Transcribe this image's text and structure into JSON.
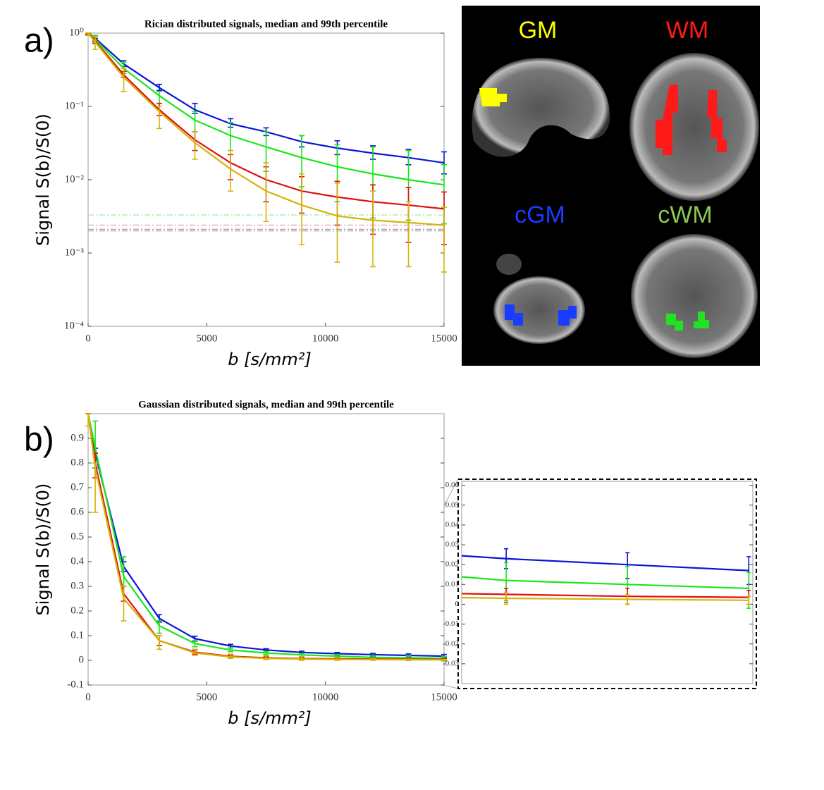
{
  "chart_data": [
    {
      "type": "line",
      "title": "Rician distributed signals, median and 99th percentile",
      "panel": "a)",
      "ylabel": "Signal S(b)/S(0)",
      "xlabel": "b [s/mm²]",
      "log_y": true,
      "x": [
        0,
        300,
        1500,
        3000,
        4500,
        6000,
        7500,
        9000,
        10500,
        12000,
        13500,
        15000
      ],
      "xlim": [
        0,
        15000
      ],
      "xticks": [
        0,
        5000,
        10000,
        15000
      ],
      "ylim": [
        0.0001,
        1
      ],
      "yticks": [
        {
          "value": 0.0001,
          "label": "10⁻⁴"
        },
        {
          "value": 0.001,
          "label": "10⁻³"
        },
        {
          "value": 0.01,
          "label": "10⁻²"
        },
        {
          "value": 0.1,
          "label": "10⁻¹"
        },
        {
          "value": 1,
          "label": "10⁰"
        }
      ],
      "series": [
        {
          "color": "#0a14d8",
          "values": [
            1,
            0.85,
            0.38,
            0.18,
            0.09,
            0.058,
            0.045,
            0.033,
            0.027,
            0.023,
            0.02,
            0.017
          ],
          "lower": [
            0.98,
            0.78,
            0.35,
            0.165,
            0.08,
            0.052,
            0.04,
            0.028,
            0.022,
            0.019,
            0.016,
            0.012
          ],
          "upper": [
            1,
            0.93,
            0.42,
            0.2,
            0.11,
            0.068,
            0.051,
            0.04,
            0.034,
            0.029,
            0.026,
            0.024
          ]
        },
        {
          "color": "#19e619",
          "values": [
            1,
            0.82,
            0.33,
            0.14,
            0.065,
            0.04,
            0.028,
            0.02,
            0.015,
            0.012,
            0.01,
            0.0085
          ],
          "lower": [
            0.97,
            0.75,
            0.28,
            0.11,
            0.045,
            0.025,
            0.013,
            0.008,
            0.005,
            0.003,
            0.0028,
            0.0025
          ],
          "upper": [
            1,
            0.93,
            0.4,
            0.16,
            0.085,
            0.06,
            0.045,
            0.04,
            0.03,
            0.028,
            0.025,
            0.016
          ]
        },
        {
          "color": "#e01010",
          "values": [
            1,
            0.78,
            0.27,
            0.09,
            0.035,
            0.017,
            0.01,
            0.007,
            0.0058,
            0.005,
            0.0045,
            0.004
          ],
          "lower": [
            0.96,
            0.72,
            0.25,
            0.075,
            0.025,
            0.01,
            0.005,
            0.0035,
            0.0024,
            0.0018,
            0.0014,
            0.0013
          ],
          "upper": [
            1,
            0.85,
            0.3,
            0.11,
            0.045,
            0.022,
            0.015,
            0.011,
            0.0095,
            0.0085,
            0.0078,
            0.0068
          ]
        },
        {
          "color": "#d4b40a",
          "values": [
            1,
            0.75,
            0.25,
            0.085,
            0.032,
            0.014,
            0.007,
            0.0045,
            0.0032,
            0.0028,
            0.0026,
            0.0024
          ],
          "lower": [
            0.93,
            0.6,
            0.16,
            0.05,
            0.019,
            0.007,
            0.0027,
            0.0013,
            0.00075,
            0.00065,
            0.00065,
            0.00055
          ],
          "upper": [
            1,
            0.9,
            0.33,
            0.1,
            0.045,
            0.025,
            0.017,
            0.012,
            0.009,
            0.007,
            0.005,
            0.0042
          ]
        }
      ],
      "hlines": [
        {
          "color": "#a8eea8",
          "value": 0.0033
        },
        {
          "color": "#f0a8a8",
          "value": 0.0024
        },
        {
          "color": "#a0a0d8",
          "value": 0.0021
        },
        {
          "color": "#c8b890",
          "value": 0.002
        }
      ],
      "image_labels": [
        {
          "text": "GM",
          "color": "#ffff00"
        },
        {
          "text": "WM",
          "color": "#ff1a1a"
        },
        {
          "text": "cGM",
          "color": "#1a3cff"
        },
        {
          "text": "cWM",
          "color": "#8cc850"
        }
      ]
    },
    {
      "type": "line",
      "title": "Gaussian distributed signals, median and 99th percentile",
      "panel": "b)",
      "ylabel": "Signal S(b)/S(0)",
      "xlabel": "b [s/mm²]",
      "log_y": false,
      "x": [
        0,
        300,
        1500,
        3000,
        4500,
        6000,
        7500,
        9000,
        10500,
        12000,
        13500,
        15000
      ],
      "xlim": [
        0,
        15000
      ],
      "xticks": [
        0,
        5000,
        10000,
        15000
      ],
      "ylim": [
        -0.1,
        1
      ],
      "yticks": [
        -0.1,
        0,
        0.1,
        0.2,
        0.3,
        0.4,
        0.5,
        0.6,
        0.7,
        0.8,
        0.9
      ],
      "series": [
        {
          "color": "#0a14d8",
          "values": [
            1,
            0.84,
            0.38,
            0.17,
            0.088,
            0.058,
            0.042,
            0.032,
            0.027,
            0.023,
            0.02,
            0.017
          ],
          "lower": [
            1,
            0.78,
            0.36,
            0.155,
            0.078,
            0.05,
            0.037,
            0.028,
            0.022,
            0.018,
            0.013,
            0.01
          ],
          "upper": [
            1,
            0.86,
            0.4,
            0.185,
            0.098,
            0.065,
            0.047,
            0.037,
            0.032,
            0.028,
            0.026,
            0.024
          ]
        },
        {
          "color": "#19e619",
          "values": [
            1,
            0.86,
            0.34,
            0.14,
            0.068,
            0.042,
            0.03,
            0.022,
            0.017,
            0.012,
            0.01,
            0.008
          ],
          "lower": [
            1,
            0.78,
            0.3,
            0.11,
            0.055,
            0.035,
            0.023,
            0.015,
            0.01,
            0.002,
            0,
            -0.002
          ],
          "upper": [
            1,
            0.97,
            0.42,
            0.16,
            0.08,
            0.05,
            0.036,
            0.028,
            0.024,
            0.021,
            0.019,
            0.016
          ]
        },
        {
          "color": "#e01010",
          "values": [
            1,
            0.8,
            0.27,
            0.08,
            0.033,
            0.016,
            0.01,
            0.007,
            0.006,
            0.005,
            0.004,
            0.0035
          ],
          "lower": [
            1,
            0.74,
            0.24,
            0.06,
            0.025,
            0.01,
            0.005,
            0.003,
            0.002,
            0.001,
            0,
            0
          ],
          "upper": [
            1,
            0.84,
            0.3,
            0.1,
            0.042,
            0.022,
            0.015,
            0.012,
            0.01,
            0.008,
            0.008,
            0.007
          ]
        },
        {
          "color": "#d4b40a",
          "values": [
            1,
            0.78,
            0.25,
            0.08,
            0.03,
            0.014,
            0.008,
            0.005,
            0.004,
            0.003,
            0.0025,
            0.002
          ],
          "lower": [
            0.95,
            0.6,
            0.16,
            0.045,
            0.02,
            0.008,
            0.003,
            0,
            0,
            0,
            0,
            0
          ],
          "upper": [
            1,
            0.8,
            0.3,
            0.1,
            0.045,
            0.025,
            0.018,
            0.014,
            0.012,
            0.006,
            0.005,
            0.004
          ]
        }
      ]
    },
    {
      "type": "inset",
      "xlim": [
        11450,
        15050
      ],
      "ylim": [
        -0.04,
        0.062
      ],
      "yticks": [
        -0.03,
        -0.02,
        -0.01,
        0,
        0.01,
        0.02,
        0.03,
        0.04,
        0.05,
        0.06
      ]
    }
  ]
}
